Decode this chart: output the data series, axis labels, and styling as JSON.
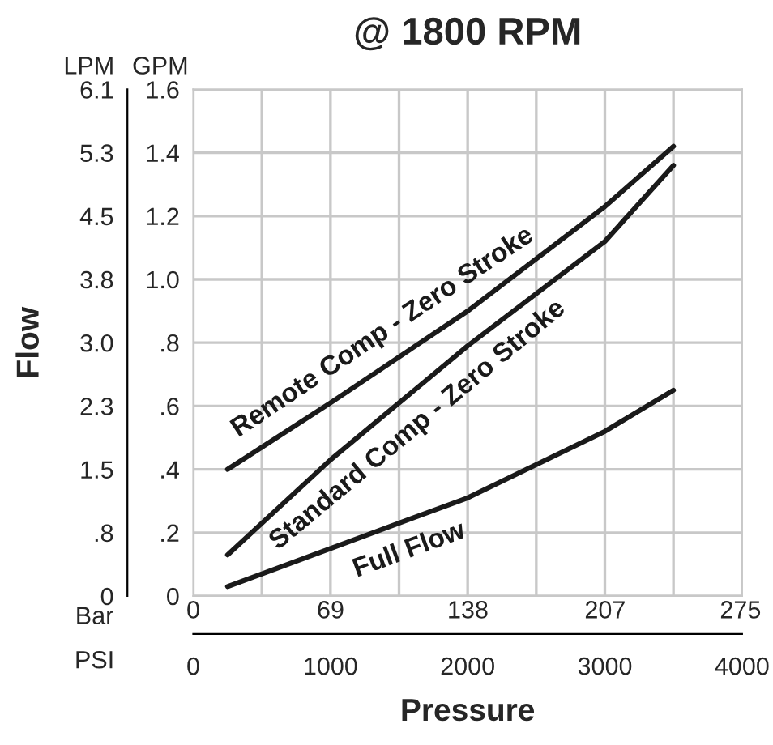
{
  "chart_data": {
    "type": "line",
    "title": "@ 1800 RPM",
    "xlabel": "Pressure",
    "ylabel": "Flow",
    "y2label": "GPM",
    "x2label": "Bar",
    "annotations": [
      "LPM",
      "PSI"
    ],
    "series": [
      {
        "name": "Remote Comp - Zero Stroke",
        "color": "#1a1a1a",
        "axis": "y2",
        "x": [
          250,
          1000,
          2000,
          3000,
          3500
        ],
        "values": [
          0.4,
          0.61,
          0.9,
          1.23,
          1.42
        ]
      },
      {
        "name": "Standard Comp - Zero Stroke",
        "color": "#1a1a1a",
        "axis": "y2",
        "x": [
          250,
          1000,
          2000,
          3000,
          3500
        ],
        "values": [
          0.13,
          0.43,
          0.79,
          1.12,
          1.36
        ]
      },
      {
        "name": "Full Flow",
        "color": "#1a1a1a",
        "axis": "y2",
        "x": [
          250,
          1000,
          2000,
          3000,
          3500
        ],
        "values": [
          0.03,
          0.15,
          0.31,
          0.52,
          0.65
        ]
      }
    ],
    "xlim": [
      0,
      4000
    ],
    "xticks": [
      0,
      {
        "value": 500,
        "label": null
      },
      1000,
      {
        "value": 1500,
        "label": null
      },
      2000,
      {
        "value": 2500,
        "label": null
      },
      3000,
      {
        "value": 3500,
        "label": null
      },
      4000
    ],
    "y2lim": [
      0,
      1.6
    ],
    "y2ticks": [
      0,
      {
        "value": 0.2,
        "label": ".2"
      },
      {
        "value": 0.4,
        "label": ".4"
      },
      {
        "value": 0.6,
        "label": ".6"
      },
      {
        "value": 0.8,
        "label": ".8"
      },
      {
        "value": 1.0,
        "label": "1.0"
      },
      {
        "value": 1.2,
        "label": "1.2"
      },
      {
        "value": 1.4,
        "label": "1.4"
      },
      {
        "value": 1.6,
        "label": "1.6"
      }
    ],
    "ylim": [
      0,
      6.056
    ],
    "yticks": [
      0,
      {
        "value": 0.757,
        "label": ".8"
      },
      {
        "value": 1.514,
        "label": "1.5"
      },
      {
        "value": 2.271,
        "label": "2.3"
      },
      {
        "value": 3.028,
        "label": "3.0"
      },
      {
        "value": 3.785,
        "label": "3.8"
      },
      {
        "value": 4.542,
        "label": "4.5"
      },
      {
        "value": 5.299,
        "label": "5.3"
      },
      {
        "value": 6.056,
        "label": "6.1"
      }
    ],
    "x2lim": [
      0,
      275.8
    ],
    "x2ticks": [
      0,
      69,
      138,
      207,
      275
    ],
    "grid": true,
    "line_style": "solid",
    "marker": "none"
  }
}
